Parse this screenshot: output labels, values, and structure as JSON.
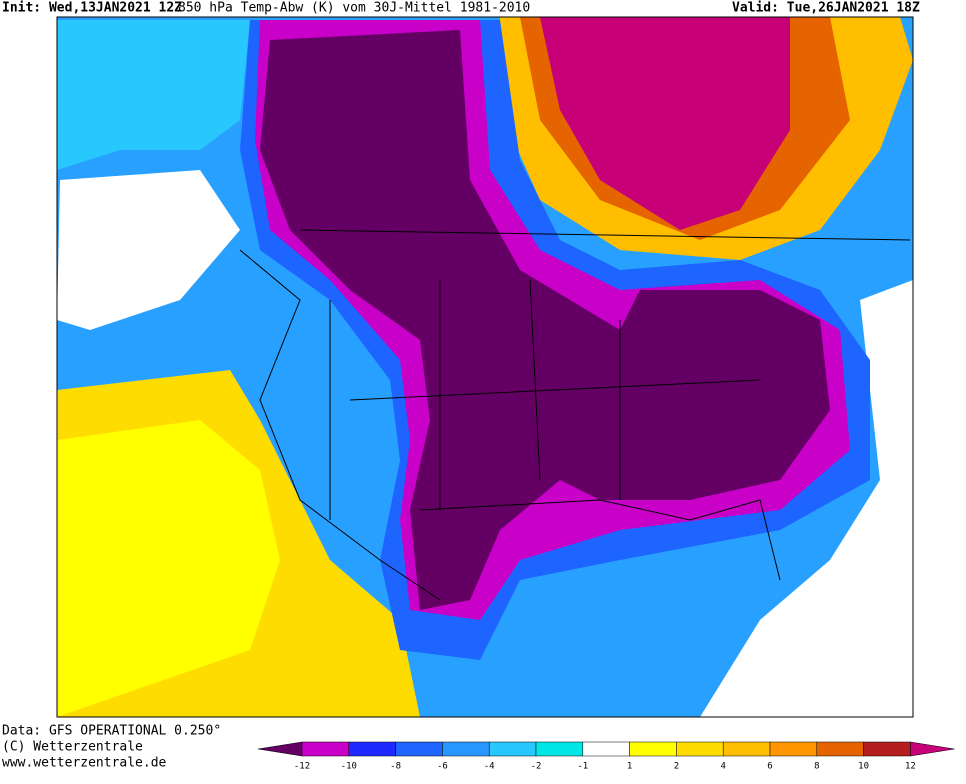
{
  "header": {
    "init": "Init: Wed,13JAN2021 12Z",
    "title": "850 hPa Temp-Abw (K) vom 30J-Mittel 1981-2010",
    "valid": "Valid: Tue,26JAN2021 18Z"
  },
  "footer": {
    "source": "Data: GFS OPERATIONAL 0.250°",
    "copyright": "(C) Wetterzentrale",
    "url": "www.wetterzentrale.de"
  },
  "legend": {
    "ticks": [
      "-12",
      "-10",
      "-8",
      "-6",
      "-4",
      "-2",
      "-1",
      "1",
      "2",
      "4",
      "6",
      "8",
      "10",
      "12"
    ],
    "colors": [
      "#640064",
      "#c800c8",
      "#1e28ff",
      "#1e64ff",
      "#2896ff",
      "#28c8ff",
      "#00e6e6",
      "#ffffff",
      "#ffff00",
      "#ffdc00",
      "#ffbe00",
      "#ff9600",
      "#e66400",
      "#b41e1e",
      "#c80078"
    ]
  }
}
